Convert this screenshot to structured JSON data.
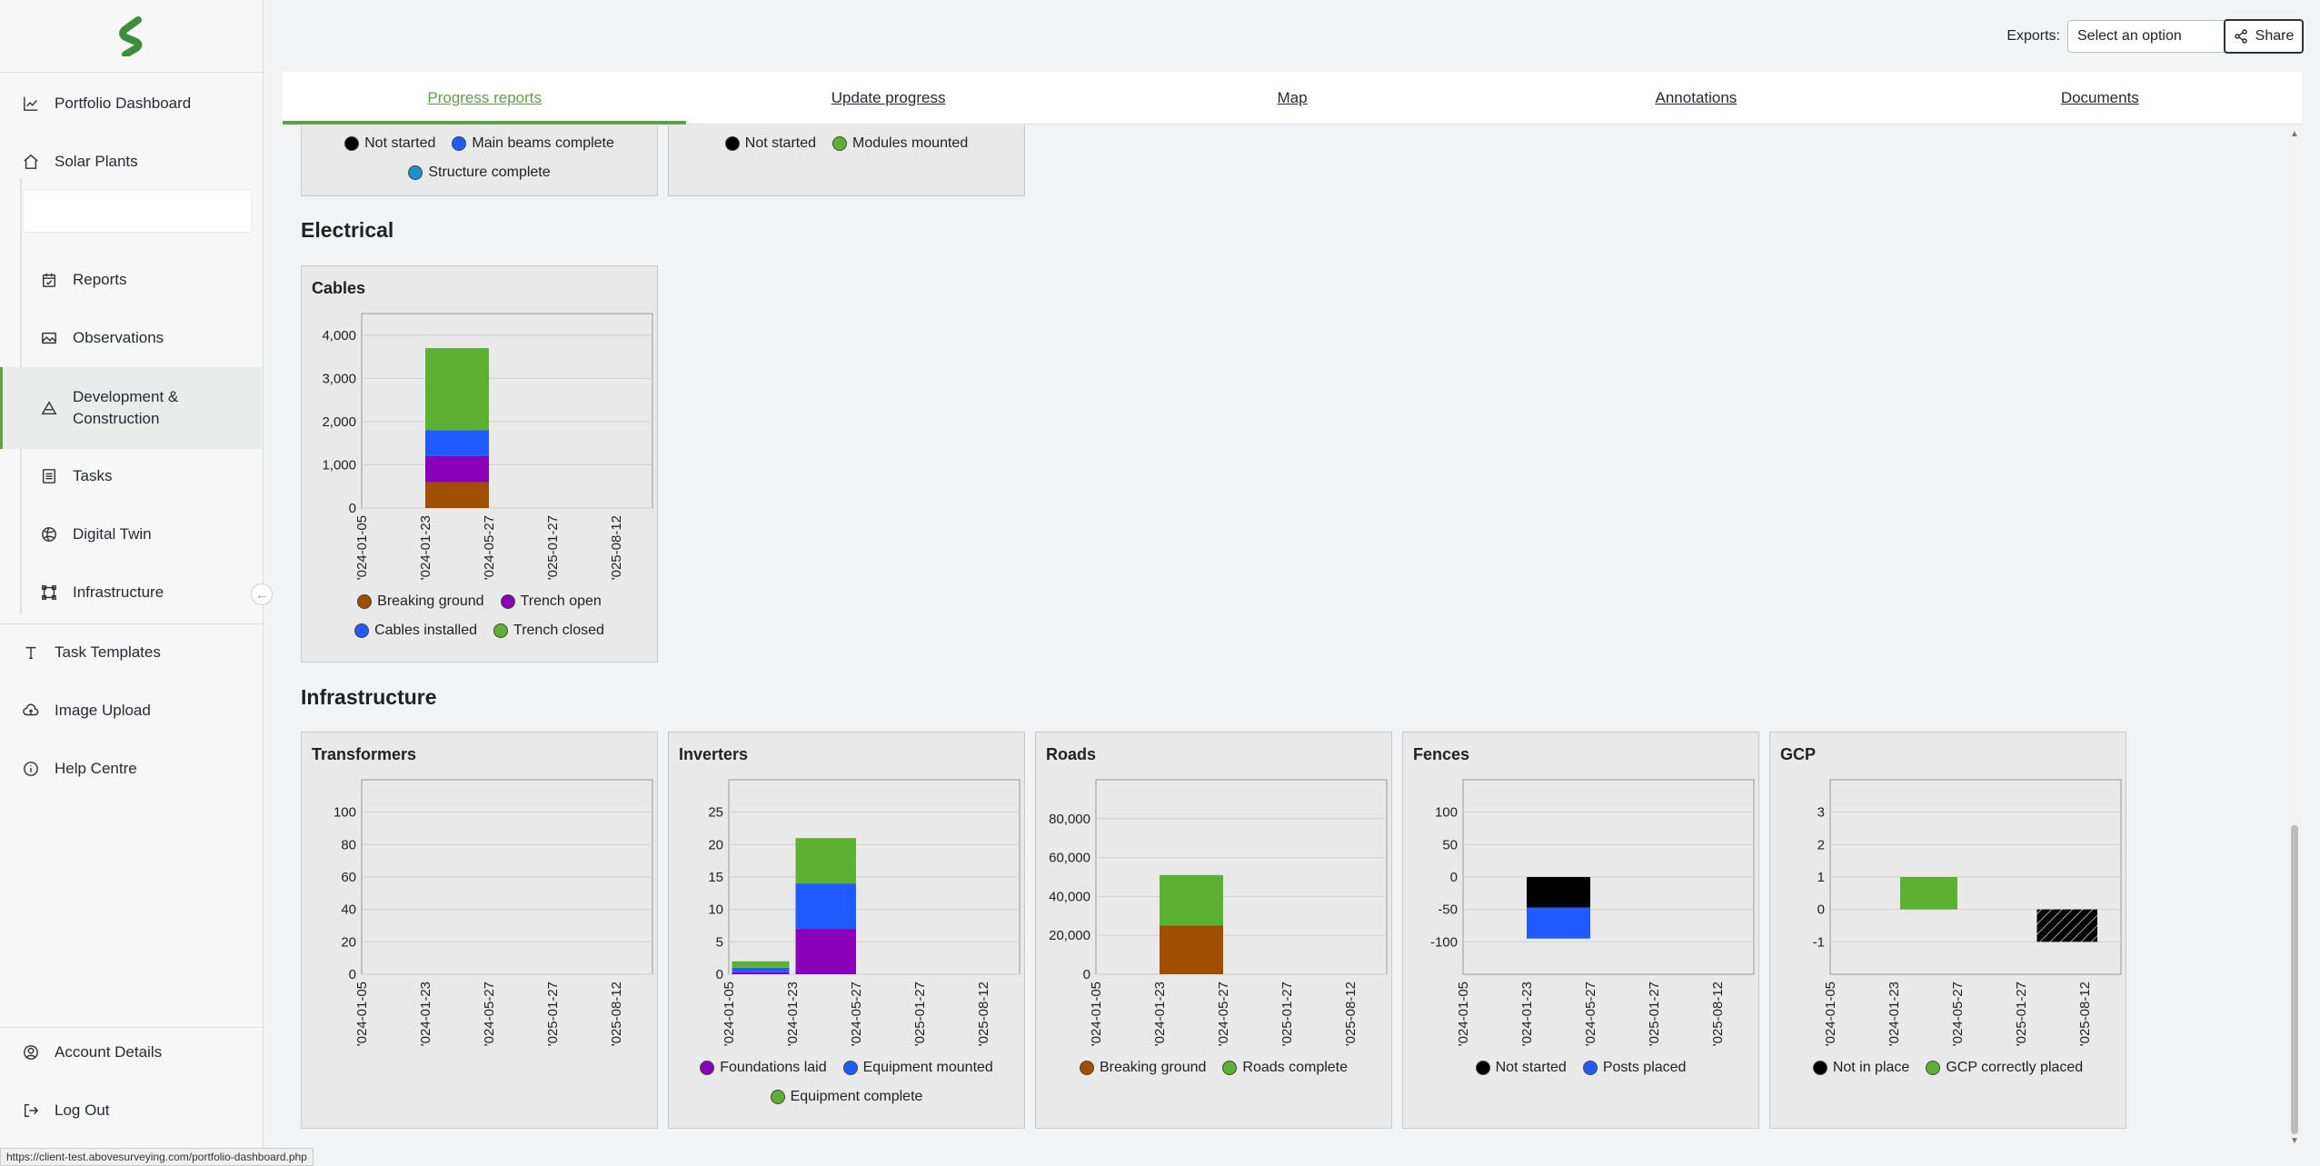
{
  "sidebar": {
    "items": [
      {
        "label": "Portfolio Dashboard",
        "icon": "line-chart-icon"
      },
      {
        "label": "Solar Plants",
        "icon": "home-icon"
      },
      {
        "label": "Reports",
        "icon": "calendar-check-icon"
      },
      {
        "label": "Observations",
        "icon": "image-icon"
      },
      {
        "label": "Development & Construction",
        "icon": "construction-icon"
      },
      {
        "label": "Tasks",
        "icon": "list-icon"
      },
      {
        "label": "Digital Twin",
        "icon": "globe-icon"
      },
      {
        "label": "Infrastructure",
        "icon": "frame-icon"
      },
      {
        "label": "Task Templates",
        "icon": "text-icon"
      },
      {
        "label": "Image Upload",
        "icon": "cloud-upload-icon"
      },
      {
        "label": "Help Centre",
        "icon": "info-icon"
      },
      {
        "label": "Account Details",
        "icon": "user-circle-icon"
      },
      {
        "label": "Log Out",
        "icon": "logout-icon"
      }
    ]
  },
  "header": {
    "exports_label": "Exports:",
    "exports_selected": "Select an option",
    "share_label": "Share"
  },
  "tabs": [
    {
      "label": "Progress reports",
      "active": true
    },
    {
      "label": "Update progress",
      "active": false
    },
    {
      "label": "Map",
      "active": false
    },
    {
      "label": "Annotations",
      "active": false
    },
    {
      "label": "Documents",
      "active": false
    }
  ],
  "partial_cards": [
    {
      "legend": [
        {
          "label": "Not started",
          "color": "#000000"
        },
        {
          "label": "Main beams complete",
          "color": "#1f5bff"
        },
        {
          "label": "Structure complete",
          "color": "#1e90c8"
        }
      ]
    },
    {
      "legend": [
        {
          "label": "Not started",
          "color": "#000000"
        },
        {
          "label": "Modules mounted",
          "color": "#5cb032"
        }
      ]
    }
  ],
  "sections": {
    "electrical": "Electrical",
    "infrastructure": "Infrastructure"
  },
  "colors": {
    "brand_green": "#5aa343",
    "breaking_ground": "#a04f00",
    "trench_open": "#8a00b8",
    "blue": "#1f5bff",
    "green": "#5cb032",
    "black": "#000000"
  },
  "x_ticks": [
    "'024-01-05",
    "'024-01-23",
    "'024-05-27",
    "'025-01-27",
    "'025-08-12"
  ],
  "chart_data": [
    {
      "title": "Cables",
      "type": "bar",
      "stacked": true,
      "categories": [
        "'024-01-05",
        "'024-01-23",
        "'024-05-27",
        "'025-01-27",
        "'025-08-12"
      ],
      "ylim": [
        0,
        4500
      ],
      "yticks": [
        0,
        1000,
        2000,
        3000,
        4000
      ],
      "ytick_labels": [
        "0",
        "1,000",
        "2,000",
        "3,000",
        "4,000"
      ],
      "series": [
        {
          "name": "Breaking ground",
          "color": "#a04f00",
          "values": [
            {
              "x0": 1,
              "x1": 2,
              "v0": 0,
              "v1": 600
            }
          ]
        },
        {
          "name": "Trench open",
          "color": "#8a00b8",
          "values": [
            {
              "x0": 1,
              "x1": 2,
              "v0": 600,
              "v1": 1200
            }
          ]
        },
        {
          "name": "Cables installed",
          "color": "#1f5bff",
          "values": [
            {
              "x0": 1,
              "x1": 2,
              "v0": 1200,
              "v1": 1800
            }
          ]
        },
        {
          "name": "Trench closed",
          "color": "#5cb032",
          "values": [
            {
              "x0": 1,
              "x1": 2,
              "v0": 1800,
              "v1": 3700
            }
          ]
        }
      ]
    },
    {
      "title": "Transformers",
      "type": "bar",
      "stacked": true,
      "categories": [
        "'024-01-05",
        "'024-01-23",
        "'024-05-27",
        "'025-01-27",
        "'025-08-12"
      ],
      "ylim": [
        0,
        120
      ],
      "yticks": [
        0,
        20,
        40,
        60,
        80,
        100
      ],
      "ytick_labels": [
        "0",
        "20",
        "40",
        "60",
        "80",
        "100"
      ],
      "series": []
    },
    {
      "title": "Inverters",
      "type": "bar",
      "stacked": true,
      "categories": [
        "'024-01-05",
        "'024-01-23",
        "'024-05-27",
        "'025-01-27",
        "'025-08-12"
      ],
      "ylim": [
        0,
        30
      ],
      "yticks": [
        0,
        5,
        10,
        15,
        20,
        25
      ],
      "ytick_labels": [
        "0",
        "5",
        "10",
        "15",
        "20",
        "25"
      ],
      "series": [
        {
          "name": "Foundations laid",
          "color": "#8a00b8",
          "values": [
            {
              "x0": 0.05,
              "x1": 0.95,
              "v0": 0,
              "v1": 0.3
            },
            {
              "x0": 1.05,
              "x1": 2.0,
              "v0": 0,
              "v1": 7
            }
          ]
        },
        {
          "name": "Equipment mounted",
          "color": "#1f5bff",
          "values": [
            {
              "x0": 0.05,
              "x1": 0.95,
              "v0": 0.3,
              "v1": 1
            },
            {
              "x0": 1.05,
              "x1": 2.0,
              "v0": 7,
              "v1": 14
            }
          ]
        },
        {
          "name": "Equipment complete",
          "color": "#5cb032",
          "values": [
            {
              "x0": 0.05,
              "x1": 0.95,
              "v0": 1,
              "v1": 2
            },
            {
              "x0": 1.05,
              "x1": 2.0,
              "v0": 14,
              "v1": 21
            }
          ]
        }
      ]
    },
    {
      "title": "Roads",
      "type": "bar",
      "stacked": true,
      "categories": [
        "'024-01-05",
        "'024-01-23",
        "'024-05-27",
        "'025-01-27",
        "'025-08-12"
      ],
      "ylim": [
        0,
        100000
      ],
      "yticks": [
        0,
        20000,
        40000,
        60000,
        80000
      ],
      "ytick_labels": [
        "0",
        "20,000",
        "40,000",
        "60,000",
        "80,000"
      ],
      "series": [
        {
          "name": "Breaking ground",
          "color": "#a04f00",
          "values": [
            {
              "x0": 1,
              "x1": 2,
              "v0": 0,
              "v1": 25000
            }
          ]
        },
        {
          "name": "Roads complete",
          "color": "#5cb032",
          "values": [
            {
              "x0": 1,
              "x1": 2,
              "v0": 25000,
              "v1": 51000
            }
          ]
        }
      ]
    },
    {
      "title": "Fences",
      "type": "bar",
      "stacked": true,
      "categories": [
        "'024-01-05",
        "'024-01-23",
        "'024-05-27",
        "'025-01-27",
        "'025-08-12"
      ],
      "ylim": [
        -150,
        150
      ],
      "yticks": [
        -100,
        -50,
        0,
        50,
        100
      ],
      "ytick_labels": [
        "-100",
        "-50",
        "0",
        "50",
        "100"
      ],
      "series": [
        {
          "name": "Not started",
          "color": "#000000",
          "values": [
            {
              "x0": 1,
              "x1": 2,
              "v0": 0,
              "v1": -47
            }
          ]
        },
        {
          "name": "Posts placed",
          "color": "#1f5bff",
          "values": [
            {
              "x0": 1,
              "x1": 2,
              "v0": -47,
              "v1": -95
            }
          ]
        }
      ]
    },
    {
      "title": "GCP",
      "type": "bar",
      "stacked": true,
      "categories": [
        "'024-01-05",
        "'024-01-23",
        "'024-05-27",
        "'025-01-27",
        "'025-08-12"
      ],
      "ylim": [
        -2,
        4
      ],
      "yticks": [
        -1,
        0,
        1,
        2,
        3
      ],
      "ytick_labels": [
        "-1",
        "0",
        "1",
        "2",
        "3"
      ],
      "series": [
        {
          "name": "Not in place",
          "color": "#000000",
          "hatched": true,
          "values": [
            {
              "x0": 3.25,
              "x1": 4.2,
              "v0": 0,
              "v1": -1
            }
          ]
        },
        {
          "name": "GCP correctly placed",
          "color": "#5cb032",
          "values": [
            {
              "x0": 1.1,
              "x1": 2.0,
              "v0": 0,
              "v1": 1
            }
          ]
        }
      ]
    }
  ],
  "status_url": "https://client-test.abovesurveying.com/portfolio-dashboard.php"
}
